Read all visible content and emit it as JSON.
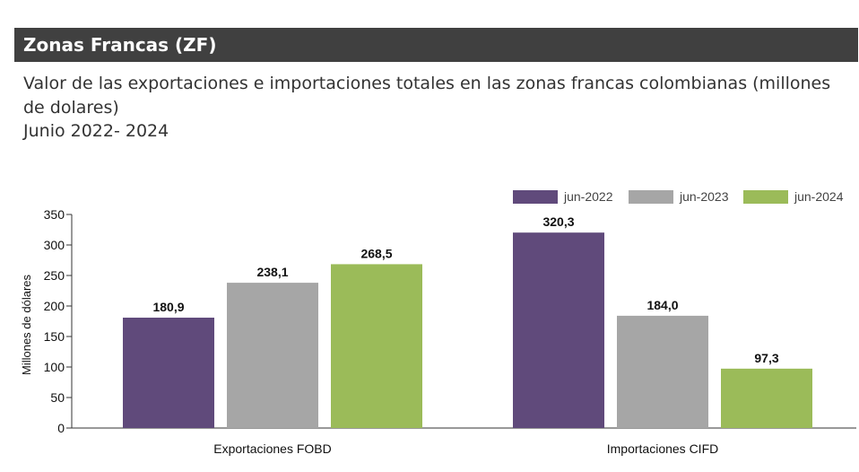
{
  "header": {
    "title": "Zonas Francas (ZF)"
  },
  "subtitle": {
    "line1": "Valor de las exportaciones e importaciones totales en las zonas francas colombianas (millones de dolares)",
    "line2": "Junio 2022- 2024"
  },
  "chart_data": {
    "type": "bar",
    "categories": [
      "Exportaciones FOBD",
      "Importaciones CIFD"
    ],
    "series": [
      {
        "name": "jun-2022",
        "color": "#604a7b",
        "values": [
          180.9,
          320.3
        ],
        "labels": [
          "180,9",
          "320,3"
        ]
      },
      {
        "name": "jun-2023",
        "color": "#a6a6a6",
        "values": [
          238.1,
          184.0
        ],
        "labels": [
          "238,1",
          "184,0"
        ]
      },
      {
        "name": "jun-2024",
        "color": "#9bbb59",
        "values": [
          268.5,
          97.3
        ],
        "labels": [
          "268,5",
          "97,3"
        ]
      }
    ],
    "ylabel": "Millones de dólares",
    "ylim": [
      0,
      350
    ],
    "yticks": [
      0,
      50,
      100,
      150,
      200,
      250,
      300,
      350
    ],
    "legend_position": "top-right",
    "grid": false
  }
}
